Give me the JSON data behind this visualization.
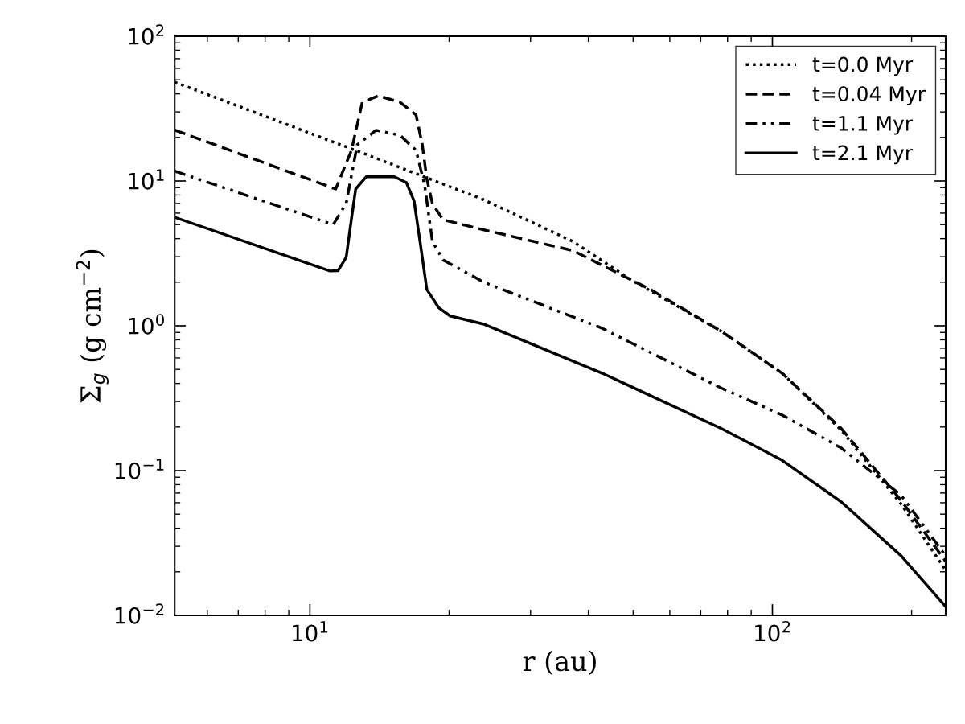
{
  "chart_data": {
    "type": "line",
    "xlabel": "r (au)",
    "ylabel": "Σ$_{g}$ (g cm$^{−2}$)",
    "log": "xy",
    "grid": false,
    "legend": "top right",
    "xlim": [
      5.1,
      237
    ],
    "ylim": [
      0.01,
      100
    ],
    "xticks": [
      {
        "value": 10,
        "label": "10$^{1}$"
      },
      {
        "value": 100,
        "label": "10$^{2}$"
      }
    ],
    "yticks": [
      {
        "value": 0.01,
        "label": "10$^{−2}$"
      },
      {
        "value": 0.1,
        "label": "10$^{−1}$"
      },
      {
        "value": 1,
        "label": "10$^{0}$"
      },
      {
        "value": 10,
        "label": "10$^{1}$"
      },
      {
        "value": 100,
        "label": "10$^{2}$"
      }
    ],
    "series": [
      {
        "name": "t=0.0 Myr",
        "color": "#000000",
        "line_style": "dotted",
        "x": [
          5.1,
          13,
          23.7,
          37,
          49.8,
          77.6,
          105,
          141,
          190,
          237
        ],
        "values": [
          48.2,
          15.6,
          7.45,
          3.83,
          2.05,
          0.915,
          0.47,
          0.19,
          0.0585,
          0.0205
        ]
      },
      {
        "name": "t=0.04 Myr",
        "color": "#000000",
        "line_style": "dashed",
        "x": [
          5.1,
          11.37,
          12.3,
          12.98,
          14.06,
          15.67,
          16.96,
          17.5,
          17.9,
          18.4,
          19.4,
          23.7,
          37,
          54.5,
          77.6,
          105,
          141,
          190,
          237
        ],
        "values": [
          22.5,
          8.8,
          16.3,
          35,
          38.8,
          35,
          28.6,
          17.8,
          10.3,
          6.99,
          5.4,
          4.61,
          3.31,
          1.78,
          0.915,
          0.47,
          0.195,
          0.062,
          0.0236
        ]
      },
      {
        "name": "t=1.1 Myr",
        "color": "#000000",
        "line_style": "dashdot",
        "x": [
          5.1,
          11.23,
          11.98,
          12.66,
          13.9,
          15.67,
          16.96,
          17.7,
          18.4,
          19.4,
          23.7,
          42.9,
          77.6,
          105,
          141,
          190,
          237
        ],
        "values": [
          11.7,
          5.0,
          7.0,
          17.8,
          22.4,
          20.7,
          16.3,
          9.4,
          3.83,
          2.85,
          2.01,
          0.96,
          0.371,
          0.242,
          0.143,
          0.0673,
          0.0258
        ]
      },
      {
        "name": "t=2.1 Myr",
        "color": "#000000",
        "line_style": "solid",
        "x": [
          5.1,
          11.05,
          11.5,
          11.98,
          12.31,
          12.56,
          13.24,
          15.23,
          16.17,
          16.8,
          17.3,
          17.9,
          19.0,
          20.1,
          23.7,
          42.9,
          77.6,
          104.9,
          141,
          189.8,
          237
        ],
        "values": [
          5.62,
          2.39,
          2.4,
          2.97,
          5.6,
          8.8,
          10.7,
          10.7,
          9.75,
          7.27,
          3.83,
          1.78,
          1.33,
          1.17,
          1.03,
          0.47,
          0.195,
          0.118,
          0.0607,
          0.0258,
          0.0115
        ]
      }
    ]
  }
}
